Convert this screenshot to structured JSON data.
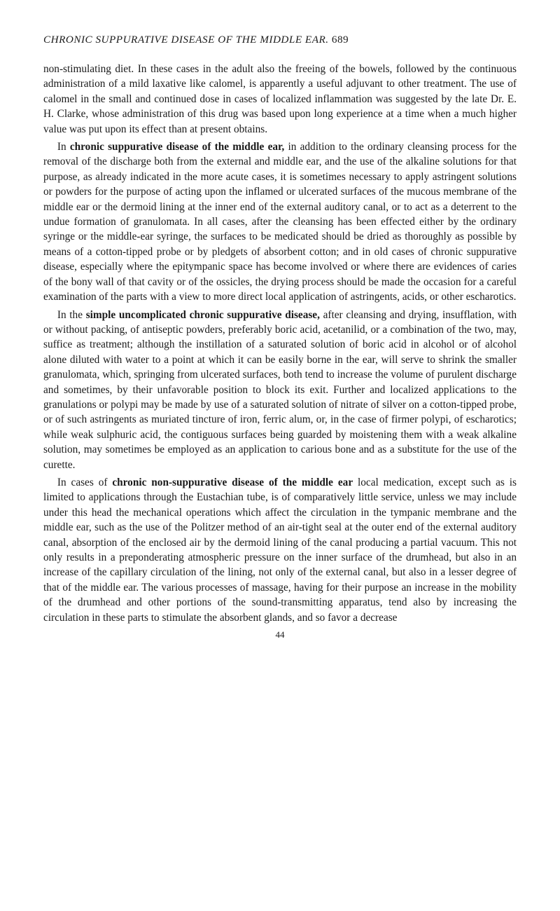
{
  "header": {
    "title_italic": "CHRONIC SUPPURATIVE DISEASE OF THE MIDDLE EAR.",
    "page_number": "689"
  },
  "paragraphs": {
    "p1a": "non-stimulating diet. In these cases in the adult also the freeing of the bowels, followed by the continuous administration of a mild laxative like calomel, is apparently a useful adjuvant to other treatment. The use of calomel in the small and continued dose in cases of localized inflammation was suggested by the late Dr. E. H. Clarke, whose administration of this drug was based upon long experience at a time when a much higher value was put upon its effect than at present obtains.",
    "p2_lead": "In ",
    "p2_bold": "chronic suppurative disease of the middle ear,",
    "p2_tail": " in addition to the ordinary cleansing process for the removal of the discharge both from the external and middle ear, and the use of the alkaline solutions for that purpose, as already indicated in the more acute cases, it is sometimes necessary to apply astringent solutions or powders for the purpose of acting upon the inflamed or ulcerated surfaces of the mucous membrane of the middle ear or the dermoid lining at the inner end of the external auditory canal, or to act as a deterrent to the undue formation of granulomata. In all cases, after the cleansing has been effected either by the ordinary syringe or the middle-ear syringe, the surfaces to be medicated should be dried as thoroughly as possible by means of a cotton-tipped probe or by pledgets of absorbent cotton; and in old cases of chronic suppurative disease, especially where the epitympanic space has become involved or where there are evidences of caries of the bony wall of that cavity or of the ossicles, the drying process should be made the occasion for a careful examination of the parts with a view to more direct local application of astringents, acids, or other escharotics.",
    "p3_lead": "In the ",
    "p3_bold": "simple uncomplicated chronic suppurative disease,",
    "p3_tail": " after cleansing and drying, insufflation, with or without packing, of antiseptic powders, preferably boric acid, acetanilid, or a combination of the two, may, suffice as treatment; although the instillation of a saturated solution of boric acid in alcohol or of alcohol alone diluted with water to a point at which it can be easily borne in the ear, will serve to shrink the smaller granulomata, which, springing from ulcerated surfaces, both tend to increase the volume of purulent discharge and sometimes, by their unfavorable position to block its exit. Further and localized applications to the granulations or polypi may be made by use of a saturated solution of nitrate of silver on a cotton-tipped probe, or of such astringents as muriated tincture of iron, ferric alum, or, in the case of firmer polypi, of escharotics; while weak sulphuric acid, the contiguous surfaces being guarded by moistening them with a weak alkaline solution, may sometimes be employed as an application to carious bone and as a substitute for the use of the curette.",
    "p4_lead": "In cases of ",
    "p4_bold": "chronic non-suppurative disease of the middle ear",
    "p4_tail": " local medication, except such as is limited to applications through the Eustachian tube, is of comparatively little service, unless we may include under this head the mechanical operations which affect the circulation in the tympanic membrane and the middle ear, such as the use of the Politzer method of an air-tight seal at the outer end of the external auditory canal, absorption of the enclosed air by the dermoid lining of the canal producing a partial vacuum. This not only results in a preponderating atmospheric pressure on the inner surface of the drumhead, but also in an increase of the capillary circulation of the lining, not only of the external canal, but also in a lesser degree of that of the middle ear. The various processes of massage, having for their purpose an increase in the mobility of the drumhead and other portions of the sound-transmitting apparatus, tend also by increasing the circulation in these parts to stimulate the absorbent glands, and so favor a decrease"
  },
  "footer": {
    "signature_mark": "44"
  }
}
